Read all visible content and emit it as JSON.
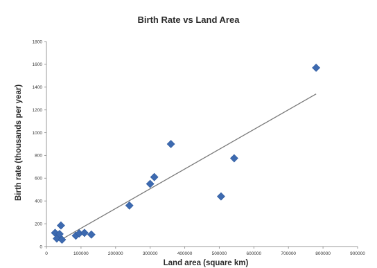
{
  "chart_data": {
    "type": "scatter",
    "title": "Birth Rate vs Land Area",
    "xlabel": "Land area (square km)",
    "ylabel": "Birth rate (thousands per year)",
    "xlim": [
      0,
      900000
    ],
    "ylim": [
      0,
      1800
    ],
    "x_ticks": [
      0,
      100000,
      200000,
      300000,
      400000,
      500000,
      600000,
      700000,
      800000,
      900000
    ],
    "y_ticks": [
      0,
      200,
      400,
      600,
      800,
      1000,
      1200,
      1400,
      1600,
      1800
    ],
    "grid": false,
    "legend": "none",
    "marker": "diamond",
    "series": [
      {
        "points": [
          {
            "x": 25000,
            "y": 120
          },
          {
            "x": 30000,
            "y": 70
          },
          {
            "x": 38000,
            "y": 110
          },
          {
            "x": 42000,
            "y": 185
          },
          {
            "x": 45000,
            "y": 60
          },
          {
            "x": 85000,
            "y": 95
          },
          {
            "x": 95000,
            "y": 115
          },
          {
            "x": 110000,
            "y": 120
          },
          {
            "x": 130000,
            "y": 105
          },
          {
            "x": 240000,
            "y": 360
          },
          {
            "x": 300000,
            "y": 550
          },
          {
            "x": 312000,
            "y": 610
          },
          {
            "x": 360000,
            "y": 900
          },
          {
            "x": 505000,
            "y": 440
          },
          {
            "x": 543000,
            "y": 775
          },
          {
            "x": 780000,
            "y": 1570
          }
        ],
        "color": "#3d6ab0"
      }
    ],
    "trendline": {
      "type": "linear",
      "from": {
        "x": 45000,
        "y": 65
      },
      "to": {
        "x": 780000,
        "y": 1340
      },
      "color": "#7a7a7a"
    }
  }
}
